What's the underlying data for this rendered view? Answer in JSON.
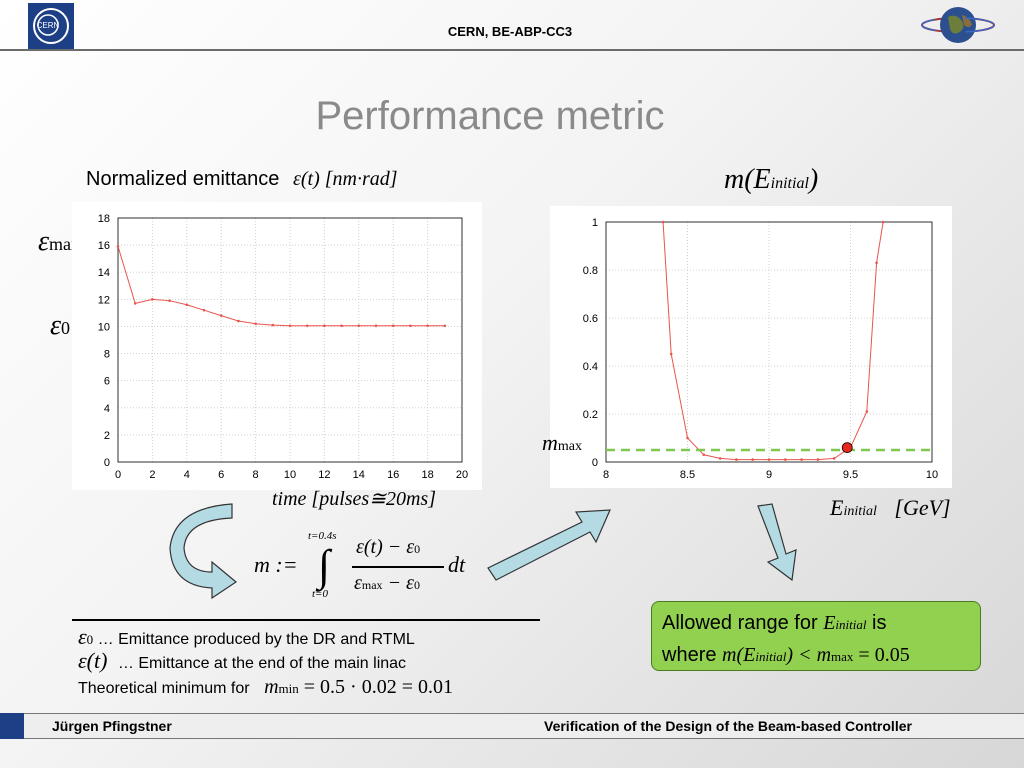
{
  "header": {
    "title": "CERN, BE-ABP-CC3",
    "logo_text": "CERN"
  },
  "slide": {
    "title": "Performance metric"
  },
  "left_chart": {
    "caption_text": "Normalized emittance",
    "caption_math": "ε(t)  [nm·rad]",
    "eps_max": "ε",
    "eps_max_sub": "max",
    "eps_zero": "ε",
    "eps_zero_sub": "0",
    "xaxis_math": "time  [pulses≅20ms]"
  },
  "right_chart": {
    "title_math": "m(E",
    "title_sub": "initial",
    "title_close": ")",
    "m_max": "m",
    "m_max_sub": "max",
    "xaxis_math": "E",
    "xaxis_sub": "initial",
    "xaxis_unit": "[GeV]"
  },
  "formula": {
    "lhs": "m :=",
    "upper": "t=0.4s",
    "lower": "t=0",
    "num": "ε(t) − ε",
    "num_sub": "0",
    "den": "ε",
    "den_sub": "max",
    "den_rest": " − ε",
    "den_sub2": "0",
    "dt": "dt"
  },
  "notes": {
    "line1_sym": "ε",
    "line1_sub": "0",
    "line1_text": " … Emittance produced by the DR and RTML",
    "line2_sym": "ε(t)",
    "line2_text": " … Emittance at the end of the main linac",
    "line3_text": "Theoretical minimum for",
    "line3_sym": "m",
    "line3_sub": "min",
    "line3_eq": " = 0.5 · 0.02 = 0.01"
  },
  "green_box": {
    "text1": "Allowed range for ",
    "sym": "E",
    "sym_sub": "initial",
    "text2": " is",
    "text3": "where ",
    "cond1": "m(E",
    "cond1_sub": "initial",
    "cond2": ") < m",
    "cond2_sub": "max",
    "cond3": " = 0.05"
  },
  "footer": {
    "left": "Jürgen Pfingstner",
    "right": "Verification of the Design of the Beam-based Controller"
  },
  "colors": {
    "series": "#e8554e",
    "dashed": "#7ec850",
    "marker": "#e8281e",
    "arrow_fill": "#b4dbe3",
    "cern_blue": "#1c3f86"
  },
  "chart_data": [
    {
      "type": "line",
      "x": [
        0,
        1,
        2,
        3,
        4,
        5,
        6,
        7,
        8,
        9,
        10,
        11,
        12,
        13,
        14,
        15,
        16,
        17,
        18,
        19
      ],
      "series": [
        {
          "values": [
            15.9,
            11.7,
            12.0,
            11.9,
            11.6,
            11.2,
            10.8,
            10.4,
            10.2,
            10.1,
            10.05,
            10.05,
            10.05,
            10.05,
            10.05,
            10.05,
            10.05,
            10.05,
            10.05,
            10.05
          ]
        }
      ],
      "xlim": [
        0,
        20
      ],
      "ylim": [
        0,
        18
      ],
      "xticks": [
        0,
        2,
        4,
        6,
        8,
        10,
        12,
        14,
        16,
        18,
        20
      ],
      "yticks": [
        0,
        2,
        4,
        6,
        8,
        10,
        12,
        14,
        16,
        18
      ],
      "grid": true
    },
    {
      "type": "line",
      "x": [
        8.35,
        8.4,
        8.5,
        8.6,
        8.7,
        8.8,
        8.9,
        9.0,
        9.1,
        9.2,
        9.3,
        9.4,
        9.5,
        9.6,
        9.66,
        9.7
      ],
      "series": [
        {
          "values": [
            1.0,
            0.45,
            0.1,
            0.03,
            0.015,
            0.01,
            0.01,
            0.01,
            0.01,
            0.01,
            0.01,
            0.015,
            0.06,
            0.21,
            0.83,
            1.0
          ]
        }
      ],
      "threshold": 0.05,
      "highlight_point": {
        "x": 9.48,
        "y": 0.06
      },
      "xlim": [
        8,
        10
      ],
      "ylim": [
        0,
        1
      ],
      "xticks": [
        8,
        8.5,
        9,
        9.5,
        10
      ],
      "yticks": [
        0,
        0.2,
        0.4,
        0.6,
        0.8,
        1
      ],
      "grid": true
    }
  ]
}
